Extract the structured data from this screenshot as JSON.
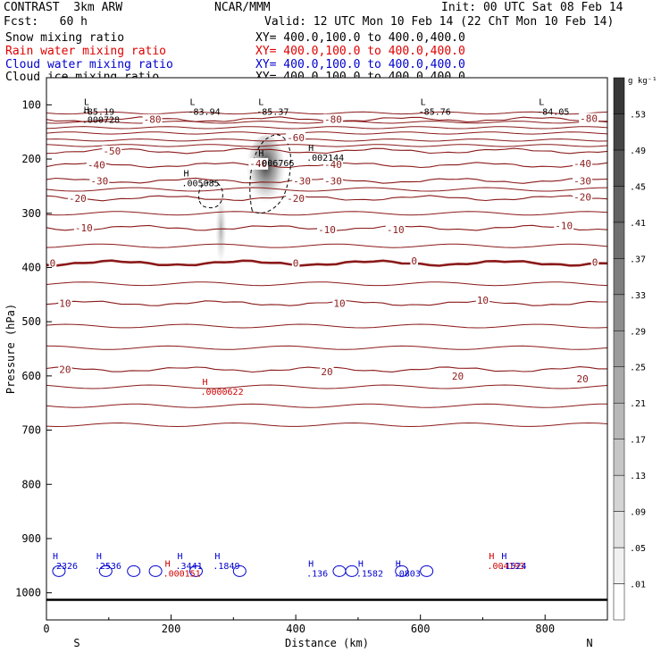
{
  "header": {
    "model": "CONTRAST  3km ARW",
    "fcst": "Fcst:   60 h",
    "center": "NCAR/MMM",
    "init": "Init: 00 UTC Sat 08 Feb 14",
    "valid": "Valid: 12 UTC Mon 10 Feb 14 (22 ChT Mon 10 Feb 14)"
  },
  "fields": [
    {
      "name": "Snow mixing ratio",
      "xy": "XY= 400.0,100.0 to 400.0,400.0",
      "color": "#000000"
    },
    {
      "name": "Rain water mixing ratio",
      "xy": "XY= 400.0,100.0 to 400.0,400.0",
      "color": "#e00000"
    },
    {
      "name": "Cloud water mixing ratio",
      "xy": "XY= 400.0,100.0 to 400.0,400.0",
      "color": "#0000d0"
    },
    {
      "name": "Cloud ice mixing ratio",
      "xy": "XY= 400.0,100.0 to 400.0,400.0",
      "color": "#000000"
    }
  ],
  "chart_data": {
    "type": "heatmap",
    "xlabel": "Distance (km)",
    "ylabel": "Pressure (hPa)",
    "xlim": [
      0,
      900
    ],
    "ylim": [
      1050,
      50
    ],
    "x_ticks": [
      0,
      200,
      400,
      600,
      800
    ],
    "y_ticks": [
      100,
      200,
      300,
      400,
      500,
      600,
      700,
      800,
      900,
      1000
    ],
    "x_end_labels": {
      "left": "S",
      "right": "N"
    },
    "colorbar": {
      "unit": "g kg⁻¹",
      "levels": [
        ".01",
        ".05",
        ".09",
        ".13",
        ".17",
        ".21",
        ".25",
        ".29",
        ".33",
        ".37",
        ".41",
        ".45",
        ".49",
        ".53"
      ]
    },
    "temperature_contours": [
      {
        "label": "-80",
        "p": 127
      },
      {
        "label": "-50",
        "p": 185
      },
      {
        "label": "-40",
        "p": 211
      },
      {
        "label": "-30",
        "p": 240
      },
      {
        "label": "-20",
        "p": 272
      },
      {
        "label": "-10",
        "p": 327
      },
      {
        "label": "0",
        "p": 392
      },
      {
        "label": "10",
        "p": 466
      },
      {
        "label": "20",
        "p": 588
      }
    ],
    "temperature_labels": [
      {
        "text": "-80",
        "x": 170,
        "p": 127
      },
      {
        "text": "-80",
        "x": 460,
        "p": 127
      },
      {
        "text": "-80",
        "x": 870,
        "p": 125
      },
      {
        "text": "-60",
        "x": 400,
        "p": 160
      },
      {
        "text": "-50",
        "x": 105,
        "p": 185
      },
      {
        "text": "-40",
        "x": 80,
        "p": 211
      },
      {
        "text": "-40",
        "x": 340,
        "p": 208
      },
      {
        "text": "-40",
        "x": 460,
        "p": 210
      },
      {
        "text": "-40",
        "x": 860,
        "p": 208
      },
      {
        "text": "-30",
        "x": 85,
        "p": 240
      },
      {
        "text": "-30",
        "x": 410,
        "p": 240
      },
      {
        "text": "-30",
        "x": 460,
        "p": 240
      },
      {
        "text": "-30",
        "x": 860,
        "p": 240
      },
      {
        "text": "-20",
        "x": 50,
        "p": 272
      },
      {
        "text": "-20",
        "x": 400,
        "p": 272
      },
      {
        "text": "-20",
        "x": 860,
        "p": 270
      },
      {
        "text": "-10",
        "x": 60,
        "p": 327
      },
      {
        "text": "-10",
        "x": 450,
        "p": 330
      },
      {
        "text": "-10",
        "x": 560,
        "p": 330
      },
      {
        "text": "-10",
        "x": 830,
        "p": 323
      },
      {
        "text": "0",
        "x": 10,
        "p": 392
      },
      {
        "text": "0",
        "x": 400,
        "p": 392
      },
      {
        "text": "0",
        "x": 590,
        "p": 388
      },
      {
        "text": "0",
        "x": 880,
        "p": 390
      },
      {
        "text": "10",
        "x": 30,
        "p": 466
      },
      {
        "text": "10",
        "x": 470,
        "p": 466
      },
      {
        "text": "10",
        "x": 700,
        "p": 460
      },
      {
        "text": "20",
        "x": 30,
        "p": 588
      },
      {
        "text": "20",
        "x": 450,
        "p": 592
      },
      {
        "text": "20",
        "x": 660,
        "p": 600
      },
      {
        "text": "20",
        "x": 860,
        "p": 605
      }
    ],
    "extrema_snow": [
      {
        "kind": "L",
        "value": "-85.19",
        "x": 60,
        "p": 100
      },
      {
        "kind": "L",
        "value": "-83.94",
        "x": 230,
        "p": 100
      },
      {
        "kind": "L",
        "value": "-85.37",
        "x": 340,
        "p": 100
      },
      {
        "kind": "L",
        "value": "-85.76",
        "x": 600,
        "p": 100
      },
      {
        "kind": "L",
        "value": "-84.05",
        "x": 790,
        "p": 100
      },
      {
        "kind": "H",
        "value": ".000728",
        "x": 60,
        "p": 115
      },
      {
        "kind": "H",
        "value": ".002144",
        "x": 420,
        "p": 185
      },
      {
        "kind": "H",
        "value": ".006766",
        "x": 340,
        "p": 195
      },
      {
        "kind": "H",
        "value": ".005085",
        "x": 220,
        "p": 232
      }
    ],
    "extrema_rain": [
      {
        "kind": "H",
        "value": ".0000622",
        "x": 250,
        "p": 617
      },
      {
        "kind": "H",
        "value": ".000151",
        "x": 190,
        "p": 952
      },
      {
        "kind": "H",
        "value": ".004193",
        "x": 710,
        "p": 938
      }
    ],
    "extrema_cloud_water": [
      {
        "kind": "H",
        "value": ".2326",
        "x": 10,
        "p": 938
      },
      {
        "kind": "H",
        "value": ".2536",
        "x": 80,
        "p": 938
      },
      {
        "kind": "H",
        "value": ".3441",
        "x": 210,
        "p": 938
      },
      {
        "kind": "H",
        "value": ".1849",
        "x": 270,
        "p": 938
      },
      {
        "kind": "H",
        "value": ".136",
        "x": 420,
        "p": 952
      },
      {
        "kind": "H",
        "value": ".1582",
        "x": 500,
        "p": 952
      },
      {
        "kind": "H",
        "value": ".0803",
        "x": 560,
        "p": 952
      },
      {
        "kind": "H",
        "value": ".1524",
        "x": 730,
        "p": 938
      }
    ]
  }
}
